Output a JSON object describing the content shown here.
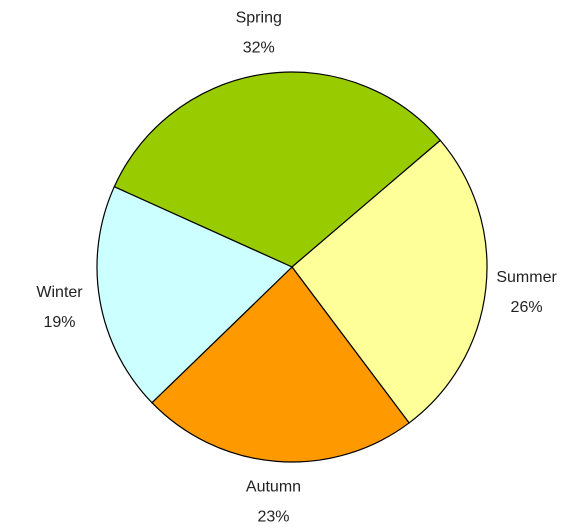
{
  "chart_data": {
    "type": "pie",
    "categories": [
      "Spring",
      "Summer",
      "Autumn",
      "Winter"
    ],
    "values": [
      32,
      26,
      23,
      19
    ],
    "value_labels": [
      "32%",
      "26%",
      "23%",
      "19%"
    ],
    "colors": [
      "#99cc00",
      "#ffff99",
      "#ff9900",
      "#ccffff"
    ]
  }
}
